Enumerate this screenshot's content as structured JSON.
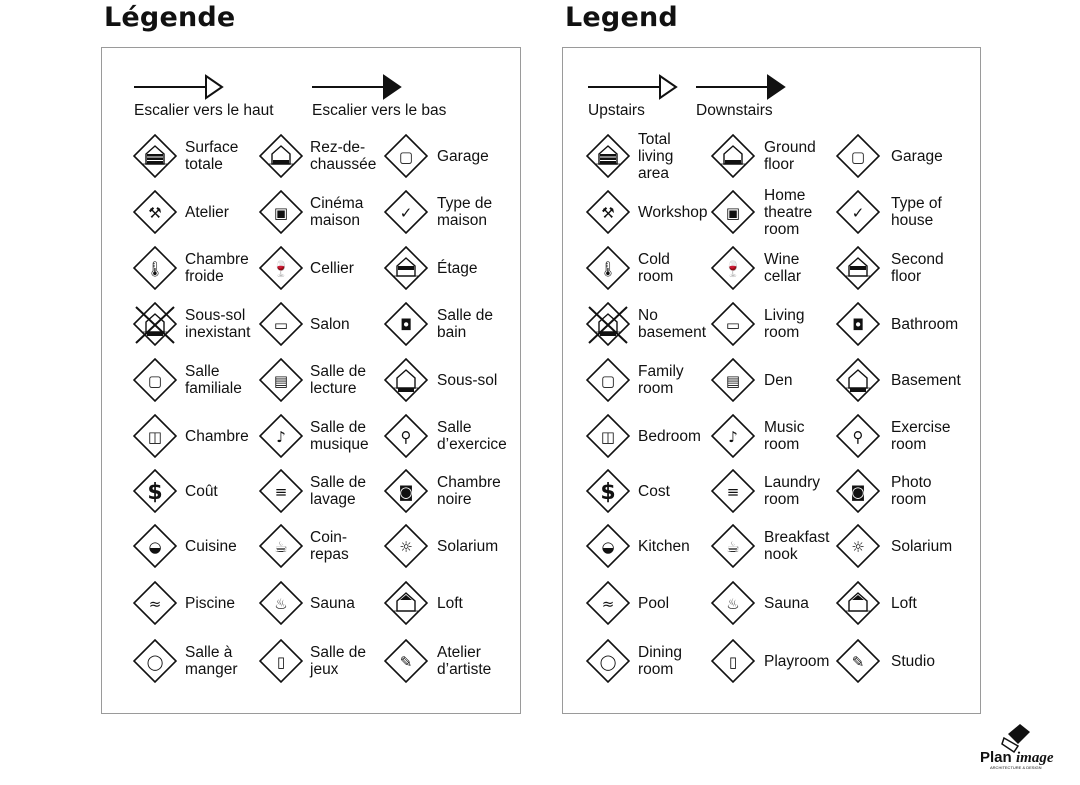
{
  "left": {
    "title": "Légende",
    "stairs_up": "Escalier vers le haut",
    "stairs_down": "Escalier vers le bas",
    "items": [
      {
        "label": "Surface\ntotale",
        "icon": "total-area-icon"
      },
      {
        "label": "Rez-de-\nchaussée",
        "icon": "ground-floor-icon"
      },
      {
        "label": "Garage",
        "icon": "garage-icon"
      },
      {
        "label": "Atelier",
        "icon": "hammer-icon"
      },
      {
        "label": "Cinéma\nmaison",
        "icon": "home-theatre-icon"
      },
      {
        "label": "Type de\nmaison",
        "icon": "house-check-icon"
      },
      {
        "label": "Chambre\nfroide",
        "icon": "thermometer-icon"
      },
      {
        "label": "Cellier",
        "icon": "wine-icon"
      },
      {
        "label": "Étage",
        "icon": "second-floor-icon"
      },
      {
        "label": "Sous-sol\ninexistant",
        "icon": "no-basement-icon"
      },
      {
        "label": "Salon",
        "icon": "sofa-icon"
      },
      {
        "label": "Salle de\nbain",
        "icon": "toilet-icon"
      },
      {
        "label": "Salle\nfamiliale",
        "icon": "tv-icon"
      },
      {
        "label": "Salle de\nlecture",
        "icon": "book-icon"
      },
      {
        "label": "Sous-sol",
        "icon": "basement-icon"
      },
      {
        "label": "Chambre",
        "icon": "bed-icon"
      },
      {
        "label": "Salle de\nmusique",
        "icon": "music-note-icon"
      },
      {
        "label": "Salle\nd’exercice",
        "icon": "weightlifter-icon"
      },
      {
        "label": "Coût",
        "icon": "dollar-icon"
      },
      {
        "label": "Salle de\nlavage",
        "icon": "washer-icon"
      },
      {
        "label": "Chambre\nnoire",
        "icon": "camera-icon"
      },
      {
        "label": "Cuisine",
        "icon": "pot-icon"
      },
      {
        "label": "Coin-\nrepas",
        "icon": "coffee-cup-icon"
      },
      {
        "label": "Solarium",
        "icon": "sun-icon"
      },
      {
        "label": "Piscine",
        "icon": "swimmer-icon"
      },
      {
        "label": "Sauna",
        "icon": "sauna-icon"
      },
      {
        "label": "Loft",
        "icon": "loft-icon"
      },
      {
        "label": "Salle à\nmanger",
        "icon": "plate-icon"
      },
      {
        "label": "Salle de\njeux",
        "icon": "playroom-icon"
      },
      {
        "label": "Atelier\nd’artiste",
        "icon": "palette-icon"
      }
    ]
  },
  "right": {
    "title": "Legend",
    "stairs_up": "Upstairs",
    "stairs_down": "Downstairs",
    "items": [
      {
        "label": "Total\nliving\narea",
        "icon": "total-area-icon"
      },
      {
        "label": "Ground\nfloor",
        "icon": "ground-floor-icon"
      },
      {
        "label": "Garage",
        "icon": "garage-icon"
      },
      {
        "label": "Workshop",
        "icon": "hammer-icon"
      },
      {
        "label": "Home\ntheatre\nroom",
        "icon": "home-theatre-icon"
      },
      {
        "label": "Type of\nhouse",
        "icon": "house-check-icon"
      },
      {
        "label": "Cold\nroom",
        "icon": "thermometer-icon"
      },
      {
        "label": "Wine\ncellar",
        "icon": "wine-icon"
      },
      {
        "label": "Second\nfloor",
        "icon": "second-floor-icon"
      },
      {
        "label": "No\nbasement",
        "icon": "no-basement-icon"
      },
      {
        "label": "Living\nroom",
        "icon": "sofa-icon"
      },
      {
        "label": "Bathroom",
        "icon": "toilet-icon"
      },
      {
        "label": "Family\nroom",
        "icon": "tv-icon"
      },
      {
        "label": "Den",
        "icon": "book-icon"
      },
      {
        "label": "Basement",
        "icon": "basement-icon"
      },
      {
        "label": "Bedroom",
        "icon": "bed-icon"
      },
      {
        "label": "Music\nroom",
        "icon": "music-note-icon"
      },
      {
        "label": "Exercise\nroom",
        "icon": "weightlifter-icon"
      },
      {
        "label": "Cost",
        "icon": "dollar-icon"
      },
      {
        "label": "Laundry\nroom",
        "icon": "washer-icon"
      },
      {
        "label": "Photo\nroom",
        "icon": "camera-icon"
      },
      {
        "label": "Kitchen",
        "icon": "pot-icon"
      },
      {
        "label": "Breakfast\nnook",
        "icon": "coffee-cup-icon"
      },
      {
        "label": "Solarium",
        "icon": "sun-icon"
      },
      {
        "label": "Pool",
        "icon": "swimmer-icon"
      },
      {
        "label": "Sauna",
        "icon": "sauna-icon"
      },
      {
        "label": "Loft",
        "icon": "loft-icon"
      },
      {
        "label": "Dining\nroom",
        "icon": "plate-icon"
      },
      {
        "label": "Playroom",
        "icon": "playroom-icon"
      },
      {
        "label": "Studio",
        "icon": "palette-icon"
      }
    ]
  },
  "logo": {
    "name": "PlanImage",
    "tagline": "ARCHITECTURE & DESIGN"
  }
}
